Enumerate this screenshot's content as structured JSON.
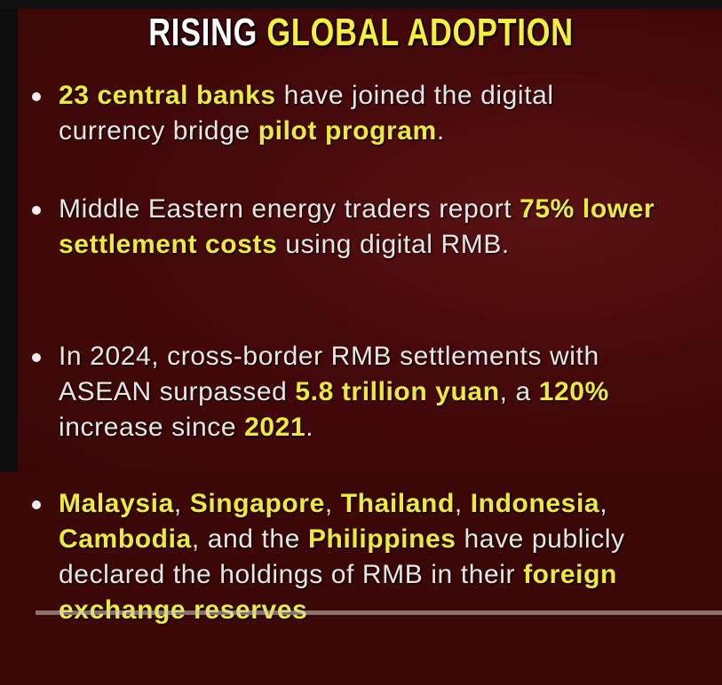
{
  "title": {
    "part1": "RISING ",
    "part2": "GLOBAL ADOPTION"
  },
  "bullets": [
    [
      {
        "t": "23 central banks",
        "h": true
      },
      {
        "t": " have joined the digital currency bridge ",
        "h": false
      },
      {
        "t": "pilot program",
        "h": true
      },
      {
        "t": ".",
        "h": false
      }
    ],
    [
      {
        "t": "Middle Eastern energy traders report ",
        "h": false
      },
      {
        "t": "75% lower settlement costs",
        "h": true
      },
      {
        "t": " using digital RMB.",
        "h": false
      }
    ],
    [
      {
        "t": "In 2024, cross-border RMB settlements with ASEAN surpassed ",
        "h": false
      },
      {
        "t": "5.8 trillion yuan",
        "h": true
      },
      {
        "t": ", a ",
        "h": false
      },
      {
        "t": "120%",
        "h": true
      },
      {
        "t": " increase since ",
        "h": false
      },
      {
        "t": "2021",
        "h": true
      },
      {
        "t": ".",
        "h": false
      }
    ],
    [
      {
        "t": "Malaysia",
        "h": true
      },
      {
        "t": ", ",
        "h": false
      },
      {
        "t": "Singapore",
        "h": true
      },
      {
        "t": ", ",
        "h": false
      },
      {
        "t": "Thailand",
        "h": true
      },
      {
        "t": ", ",
        "h": false
      },
      {
        "t": "Indonesia",
        "h": true
      },
      {
        "t": ", ",
        "h": false
      },
      {
        "t": "Cambodia",
        "h": true
      },
      {
        "t": ", and the ",
        "h": false
      },
      {
        "t": "Philippines",
        "h": true
      },
      {
        "t": " have publicly declared the holdings of RMB in their ",
        "h": false
      },
      {
        "t": "foreign exchange reserves",
        "h": true
      }
    ]
  ],
  "colors": {
    "highlight": "#ecea3c",
    "background": "#3a0606"
  }
}
